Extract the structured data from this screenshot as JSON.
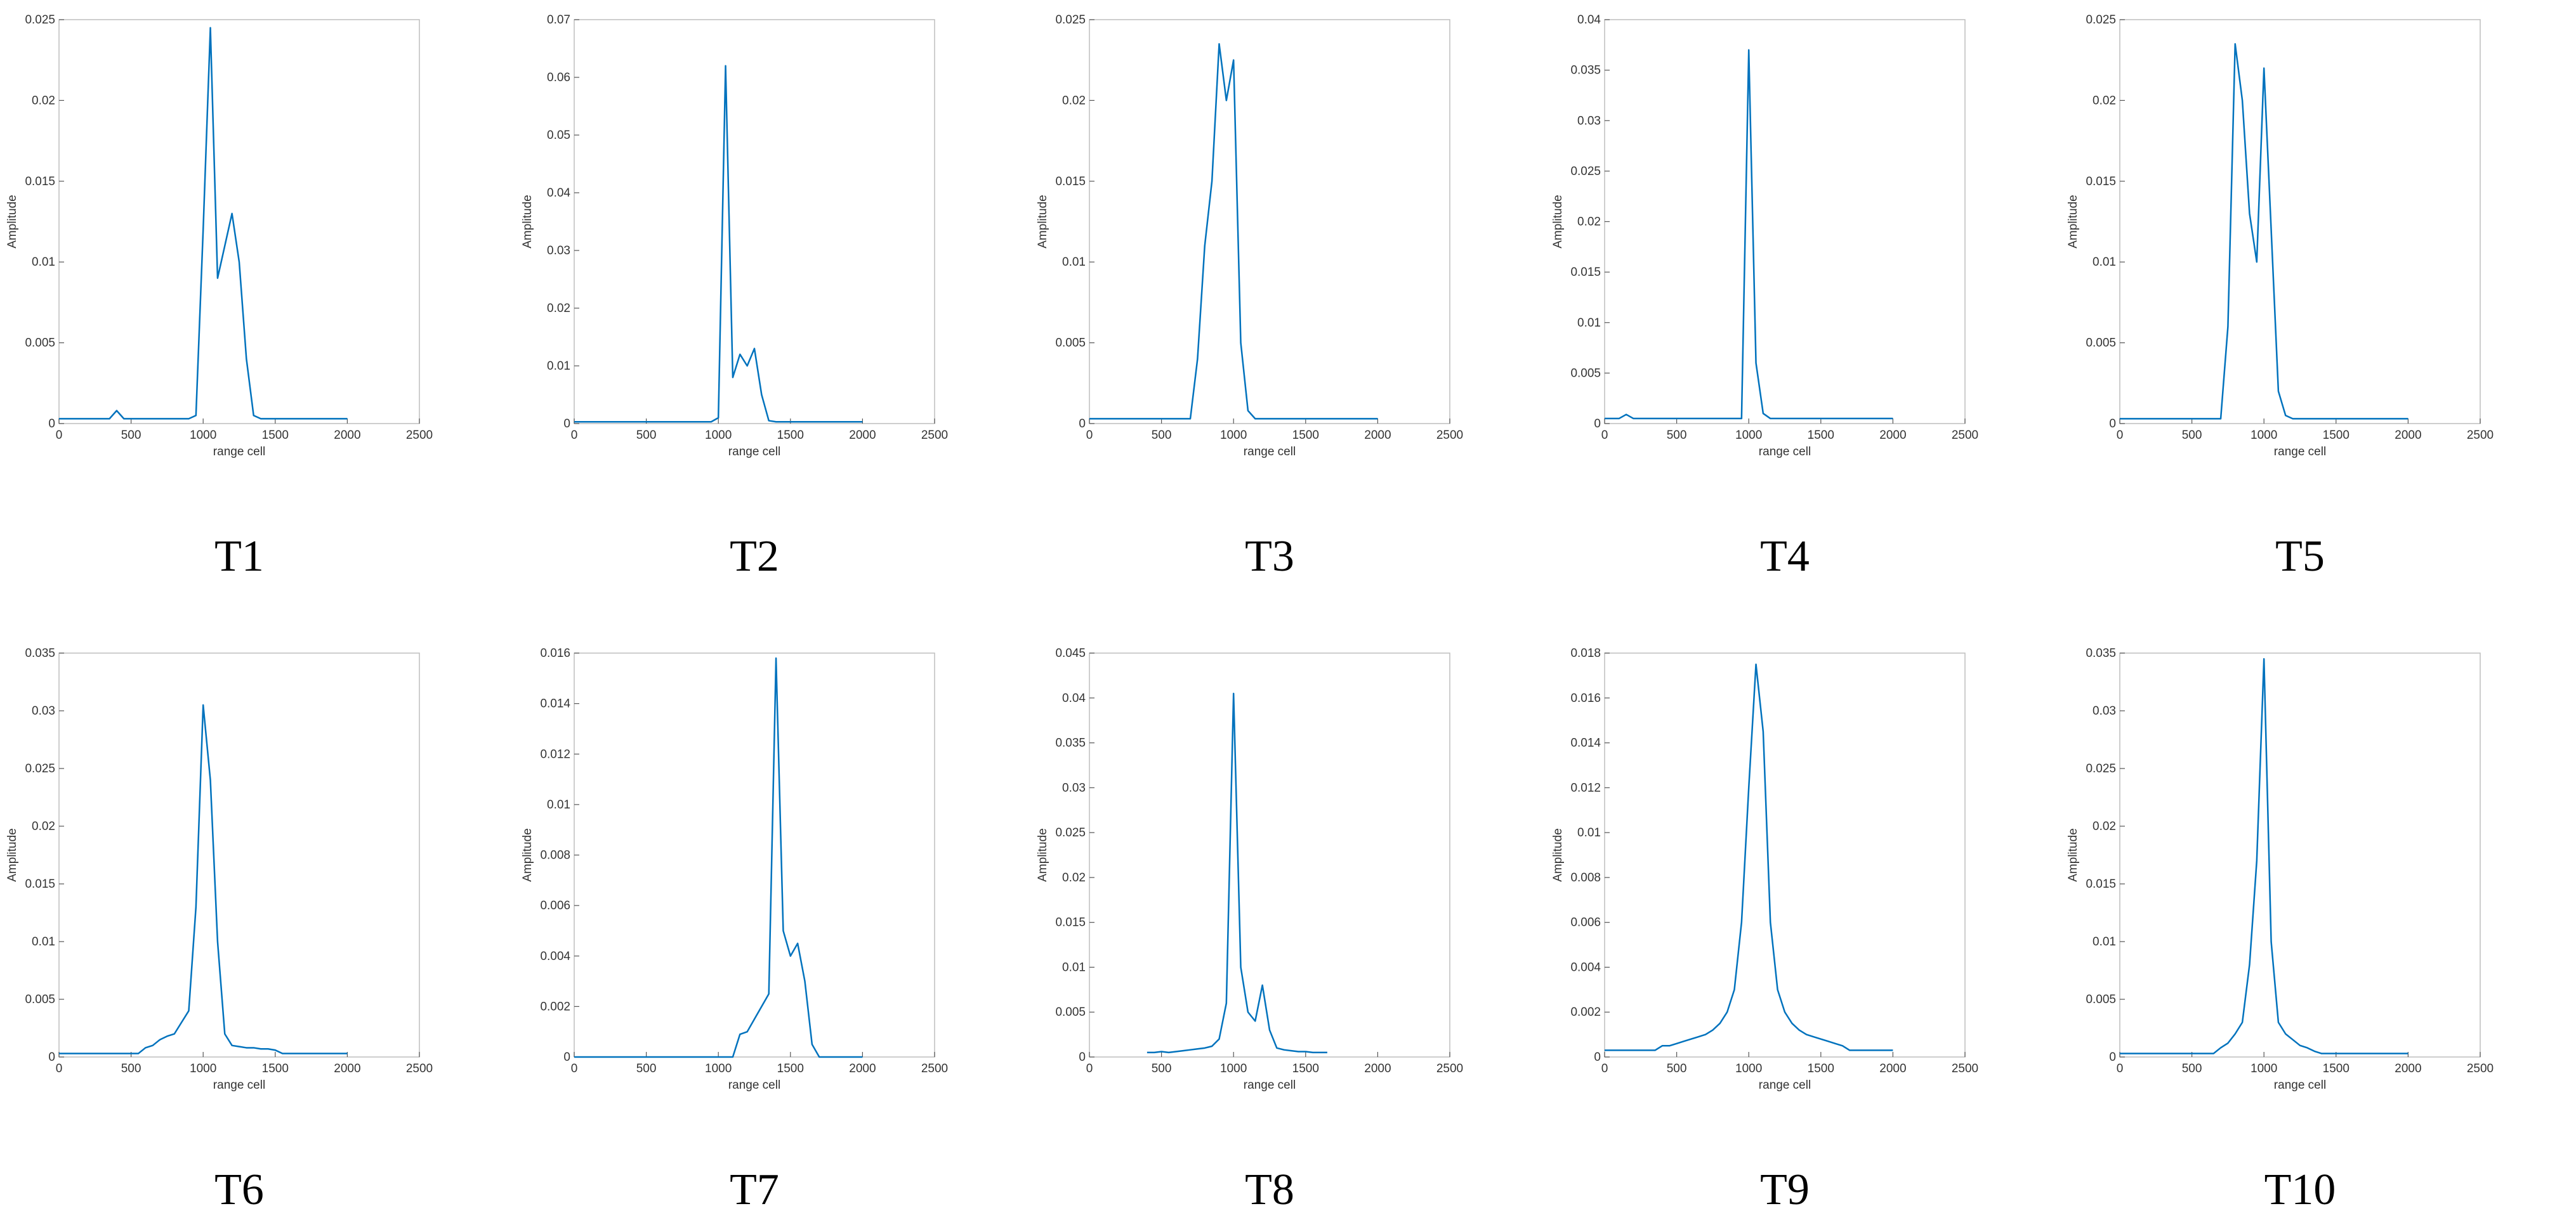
{
  "chart_data": [
    {
      "type": "line",
      "title": "T1",
      "x_label": "range cell",
      "y_label": "Amplitude",
      "color": "#0072bd",
      "x": [
        0,
        50,
        100,
        150,
        200,
        250,
        300,
        350,
        400,
        450,
        500,
        550,
        600,
        650,
        700,
        750,
        800,
        850,
        900,
        950,
        1000,
        1050,
        1100,
        1150,
        1200,
        1250,
        1300,
        1350,
        1400,
        1450,
        1500,
        1550,
        1600,
        1650,
        1700,
        1750,
        1800,
        1850,
        1900,
        1950,
        2000
      ],
      "values": [
        0.0003,
        0.0003,
        0.0003,
        0.0003,
        0.0003,
        0.0003,
        0.0003,
        0.0003,
        0.0008,
        0.0003,
        0.0003,
        0.0003,
        0.0003,
        0.0003,
        0.0003,
        0.0003,
        0.0003,
        0.0003,
        0.0003,
        0.0005,
        0.012,
        0.0245,
        0.009,
        0.011,
        0.013,
        0.01,
        0.004,
        0.0005,
        0.0003,
        0.0003,
        0.0003,
        0.0003,
        0.0003,
        0.0003,
        0.0003,
        0.0003,
        0.0003,
        0.0003,
        0.0003,
        0.0003,
        0.0003
      ],
      "xlim": [
        0,
        2500
      ],
      "xticks": [
        0,
        500,
        1000,
        1500,
        2000,
        2500
      ],
      "ylim": [
        0,
        0.025
      ],
      "yticks": [
        0,
        0.005,
        0.01,
        0.015,
        0.02,
        0.025
      ]
    },
    {
      "type": "line",
      "title": "T2",
      "x_label": "range cell",
      "y_label": "Amplitude",
      "color": "#0072bd",
      "x": [
        0,
        50,
        100,
        150,
        200,
        250,
        300,
        350,
        400,
        450,
        500,
        550,
        600,
        650,
        700,
        750,
        800,
        850,
        900,
        950,
        1000,
        1050,
        1100,
        1150,
        1200,
        1250,
        1300,
        1350,
        1400,
        1450,
        1500,
        1550,
        1600,
        1650,
        1700,
        1750,
        1800,
        1850,
        1900,
        1950,
        2000
      ],
      "values": [
        0.0003,
        0.0003,
        0.0003,
        0.0003,
        0.0003,
        0.0003,
        0.0003,
        0.0003,
        0.0003,
        0.0003,
        0.0003,
        0.0003,
        0.0003,
        0.0003,
        0.0003,
        0.0003,
        0.0003,
        0.0003,
        0.0003,
        0.0003,
        0.001,
        0.062,
        0.008,
        0.012,
        0.01,
        0.013,
        0.005,
        0.0005,
        0.0003,
        0.0003,
        0.0003,
        0.0003,
        0.0003,
        0.0003,
        0.0003,
        0.0003,
        0.0003,
        0.0003,
        0.0003,
        0.0003,
        0.0003
      ],
      "xlim": [
        0,
        2500
      ],
      "xticks": [
        0,
        500,
        1000,
        1500,
        2000,
        2500
      ],
      "ylim": [
        0,
        0.07
      ],
      "yticks": [
        0,
        0.01,
        0.02,
        0.03,
        0.04,
        0.05,
        0.06,
        0.07
      ]
    },
    {
      "type": "line",
      "title": "T3",
      "x_label": "range cell",
      "y_label": "Amplitude",
      "color": "#0072bd",
      "x": [
        0,
        50,
        100,
        150,
        200,
        250,
        300,
        350,
        400,
        450,
        500,
        550,
        600,
        650,
        700,
        750,
        800,
        850,
        900,
        950,
        1000,
        1050,
        1100,
        1150,
        1200,
        1250,
        1300,
        1350,
        1400,
        1450,
        1500,
        1550,
        1600,
        1650,
        1700,
        1750,
        1800,
        1850,
        1900,
        1950,
        2000
      ],
      "values": [
        0.0003,
        0.0003,
        0.0003,
        0.0003,
        0.0003,
        0.0003,
        0.0003,
        0.0003,
        0.0003,
        0.0003,
        0.0003,
        0.0003,
        0.0003,
        0.0003,
        0.0003,
        0.004,
        0.011,
        0.015,
        0.0235,
        0.02,
        0.0225,
        0.005,
        0.0008,
        0.0003,
        0.0003,
        0.0003,
        0.0003,
        0.0003,
        0.0003,
        0.0003,
        0.0003,
        0.0003,
        0.0003,
        0.0003,
        0.0003,
        0.0003,
        0.0003,
        0.0003,
        0.0003,
        0.0003,
        0.0003
      ],
      "xlim": [
        0,
        2500
      ],
      "xticks": [
        0,
        500,
        1000,
        1500,
        2000,
        2500
      ],
      "ylim": [
        0,
        0.025
      ],
      "yticks": [
        0,
        0.005,
        0.01,
        0.015,
        0.02,
        0.025
      ]
    },
    {
      "type": "line",
      "title": "T4",
      "x_label": "range cell",
      "y_label": "Amplitude",
      "color": "#0072bd",
      "x": [
        0,
        50,
        100,
        150,
        200,
        250,
        300,
        350,
        400,
        450,
        500,
        550,
        600,
        650,
        700,
        750,
        800,
        850,
        900,
        950,
        1000,
        1050,
        1100,
        1150,
        1200,
        1250,
        1300,
        1350,
        1400,
        1450,
        1500,
        1550,
        1600,
        1650,
        1700,
        1750,
        1800,
        1850,
        1900,
        1950,
        2000
      ],
      "values": [
        0.0005,
        0.0005,
        0.0005,
        0.0009,
        0.0005,
        0.0005,
        0.0005,
        0.0005,
        0.0005,
        0.0005,
        0.0005,
        0.0005,
        0.0005,
        0.0005,
        0.0005,
        0.0005,
        0.0005,
        0.0005,
        0.0005,
        0.0005,
        0.037,
        0.006,
        0.001,
        0.0005,
        0.0005,
        0.0005,
        0.0005,
        0.0005,
        0.0005,
        0.0005,
        0.0005,
        0.0005,
        0.0005,
        0.0005,
        0.0005,
        0.0005,
        0.0005,
        0.0005,
        0.0005,
        0.0005,
        0.0005
      ],
      "xlim": [
        0,
        2500
      ],
      "xticks": [
        0,
        500,
        1000,
        1500,
        2000,
        2500
      ],
      "ylim": [
        0,
        0.04
      ],
      "yticks": [
        0,
        0.005,
        0.01,
        0.015,
        0.02,
        0.025,
        0.03,
        0.035,
        0.04
      ]
    },
    {
      "type": "line",
      "title": "T5",
      "x_label": "range cell",
      "y_label": "Amplitude",
      "color": "#0072bd",
      "x": [
        0,
        50,
        100,
        150,
        200,
        250,
        300,
        350,
        400,
        450,
        500,
        550,
        600,
        650,
        700,
        750,
        800,
        850,
        900,
        950,
        1000,
        1050,
        1100,
        1150,
        1200,
        1250,
        1300,
        1350,
        1400,
        1450,
        1500,
        1550,
        1600,
        1650,
        1700,
        1750,
        1800,
        1850,
        1900,
        1950,
        2000
      ],
      "values": [
        0.0003,
        0.0003,
        0.0003,
        0.0003,
        0.0003,
        0.0003,
        0.0003,
        0.0003,
        0.0003,
        0.0003,
        0.0003,
        0.0003,
        0.0003,
        0.0003,
        0.0003,
        0.006,
        0.0235,
        0.02,
        0.013,
        0.01,
        0.022,
        0.012,
        0.002,
        0.0005,
        0.0003,
        0.0003,
        0.0003,
        0.0003,
        0.0003,
        0.0003,
        0.0003,
        0.0003,
        0.0003,
        0.0003,
        0.0003,
        0.0003,
        0.0003,
        0.0003,
        0.0003,
        0.0003,
        0.0003
      ],
      "xlim": [
        0,
        2500
      ],
      "xticks": [
        0,
        500,
        1000,
        1500,
        2000,
        2500
      ],
      "ylim": [
        0,
        0.025
      ],
      "yticks": [
        0,
        0.005,
        0.01,
        0.015,
        0.02,
        0.025
      ]
    },
    {
      "type": "line",
      "title": "T6",
      "x_label": "range cell",
      "y_label": "Amplitude",
      "color": "#0072bd",
      "x": [
        0,
        50,
        100,
        150,
        200,
        250,
        300,
        350,
        400,
        450,
        500,
        550,
        600,
        650,
        700,
        750,
        800,
        850,
        900,
        950,
        1000,
        1050,
        1100,
        1150,
        1200,
        1250,
        1300,
        1350,
        1400,
        1450,
        1500,
        1550,
        1600,
        1650,
        1700,
        1750,
        1800,
        1850,
        1900,
        1950,
        2000
      ],
      "values": [
        0.0003,
        0.0003,
        0.0003,
        0.0003,
        0.0003,
        0.0003,
        0.0003,
        0.0003,
        0.0003,
        0.0003,
        0.0003,
        0.0003,
        0.0008,
        0.001,
        0.0015,
        0.0018,
        0.002,
        0.003,
        0.004,
        0.013,
        0.0305,
        0.024,
        0.01,
        0.002,
        0.001,
        0.0009,
        0.0008,
        0.0008,
        0.0007,
        0.0007,
        0.0006,
        0.0003,
        0.0003,
        0.0003,
        0.0003,
        0.0003,
        0.0003,
        0.0003,
        0.0003,
        0.0003,
        0.0003
      ],
      "xlim": [
        0,
        2500
      ],
      "xticks": [
        0,
        500,
        1000,
        1500,
        2000,
        2500
      ],
      "ylim": [
        0,
        0.035
      ],
      "yticks": [
        0,
        0.005,
        0.01,
        0.015,
        0.02,
        0.025,
        0.03,
        0.035
      ]
    },
    {
      "type": "line",
      "title": "T7",
      "x_label": "range cell",
      "y_label": "Amplitude",
      "color": "#0072bd",
      "x": [
        0,
        50,
        100,
        150,
        200,
        250,
        300,
        350,
        400,
        450,
        500,
        550,
        600,
        650,
        700,
        750,
        800,
        850,
        900,
        950,
        1000,
        1050,
        1100,
        1150,
        1200,
        1250,
        1300,
        1350,
        1400,
        1450,
        1500,
        1550,
        1600,
        1650,
        1700,
        1750,
        1800,
        1850,
        1900,
        1950,
        2000
      ],
      "values": [
        0,
        0,
        0,
        0,
        0,
        0,
        0,
        0,
        0,
        0,
        0,
        0,
        0,
        0,
        0,
        0,
        0,
        0,
        0,
        0,
        0,
        0,
        0,
        0.0009,
        0.001,
        0.0015,
        0.002,
        0.0025,
        0.0158,
        0.005,
        0.004,
        0.0045,
        0.003,
        0.0005,
        0,
        0,
        0,
        0,
        0,
        0,
        0
      ],
      "xlim": [
        0,
        2500
      ],
      "xticks": [
        0,
        500,
        1000,
        1500,
        2000,
        2500
      ],
      "ylim": [
        0,
        0.016
      ],
      "yticks": [
        0,
        0.002,
        0.004,
        0.006,
        0.008,
        0.01,
        0.012,
        0.014,
        0.016
      ]
    },
    {
      "type": "line",
      "title": "T8",
      "x_label": "range cell",
      "y_label": "Amplitude",
      "color": "#0072bd",
      "x": [
        0,
        50,
        100,
        150,
        200,
        250,
        300,
        350,
        400,
        450,
        500,
        550,
        600,
        650,
        700,
        750,
        800,
        850,
        900,
        950,
        1000,
        1050,
        1100,
        1150,
        1200,
        1250,
        1300,
        1350,
        1400,
        1450,
        1500,
        1550,
        1600,
        1650,
        1700,
        1750,
        1800,
        1850,
        1900,
        1950,
        2000
      ],
      "values": [
        null,
        null,
        null,
        null,
        null,
        null,
        null,
        null,
        0.0005,
        0.0005,
        0.0006,
        0.0005,
        0.0006,
        0.0007,
        0.0008,
        0.0009,
        0.001,
        0.0012,
        0.002,
        0.006,
        0.0405,
        0.01,
        0.005,
        0.004,
        0.008,
        0.003,
        0.001,
        0.0008,
        0.0007,
        0.0006,
        0.0006,
        0.0005,
        0.0005,
        0.0005,
        null,
        null,
        null,
        null,
        null,
        null,
        null
      ],
      "xlim": [
        0,
        2500
      ],
      "xticks": [
        0,
        500,
        1000,
        1500,
        2000,
        2500
      ],
      "ylim": [
        0,
        0.045
      ],
      "yticks": [
        0,
        0.005,
        0.01,
        0.015,
        0.02,
        0.025,
        0.03,
        0.035,
        0.04,
        0.045
      ]
    },
    {
      "type": "line",
      "title": "T9",
      "x_label": "range cell",
      "y_label": "Amplitude",
      "color": "#0072bd",
      "x": [
        0,
        50,
        100,
        150,
        200,
        250,
        300,
        350,
        400,
        450,
        500,
        550,
        600,
        650,
        700,
        750,
        800,
        850,
        900,
        950,
        1000,
        1050,
        1100,
        1150,
        1200,
        1250,
        1300,
        1350,
        1400,
        1450,
        1500,
        1550,
        1600,
        1650,
        1700,
        1750,
        1800,
        1850,
        1900,
        1950,
        2000
      ],
      "values": [
        0.0003,
        0.0003,
        0.0003,
        0.0003,
        0.0003,
        0.0003,
        0.0003,
        0.0003,
        0.0005,
        0.0005,
        0.0006,
        0.0007,
        0.0008,
        0.0009,
        0.001,
        0.0012,
        0.0015,
        0.002,
        0.003,
        0.006,
        0.012,
        0.0175,
        0.0145,
        0.006,
        0.003,
        0.002,
        0.0015,
        0.0012,
        0.001,
        0.0009,
        0.0008,
        0.0007,
        0.0006,
        0.0005,
        0.0003,
        0.0003,
        0.0003,
        0.0003,
        0.0003,
        0.0003,
        0.0003
      ],
      "xlim": [
        0,
        2500
      ],
      "xticks": [
        0,
        500,
        1000,
        1500,
        2000,
        2500
      ],
      "ylim": [
        0,
        0.018
      ],
      "yticks": [
        0,
        0.002,
        0.004,
        0.006,
        0.008,
        0.01,
        0.012,
        0.014,
        0.016,
        0.018
      ]
    },
    {
      "type": "line",
      "title": "T10",
      "x_label": "range cell",
      "y_label": "Amplitude",
      "color": "#0072bd",
      "x": [
        0,
        50,
        100,
        150,
        200,
        250,
        300,
        350,
        400,
        450,
        500,
        550,
        600,
        650,
        700,
        750,
        800,
        850,
        900,
        950,
        1000,
        1050,
        1100,
        1150,
        1200,
        1250,
        1300,
        1350,
        1400,
        1450,
        1500,
        1550,
        1600,
        1650,
        1700,
        1750,
        1800,
        1850,
        1900,
        1950,
        2000
      ],
      "values": [
        0.0003,
        0.0003,
        0.0003,
        0.0003,
        0.0003,
        0.0003,
        0.0003,
        0.0003,
        0.0003,
        0.0003,
        0.0003,
        0.0003,
        0.0003,
        0.0003,
        0.0008,
        0.0012,
        0.002,
        0.003,
        0.008,
        0.017,
        0.0345,
        0.01,
        0.003,
        0.002,
        0.0015,
        0.001,
        0.0008,
        0.0005,
        0.0003,
        0.0003,
        0.0003,
        0.0003,
        0.0003,
        0.0003,
        0.0003,
        0.0003,
        0.0003,
        0.0003,
        0.0003,
        0.0003,
        0.0003
      ],
      "xlim": [
        0,
        2500
      ],
      "xticks": [
        0,
        500,
        1000,
        1500,
        2000,
        2500
      ],
      "ylim": [
        0,
        0.035
      ],
      "yticks": [
        0,
        0.005,
        0.01,
        0.015,
        0.02,
        0.025,
        0.03,
        0.035
      ]
    }
  ]
}
